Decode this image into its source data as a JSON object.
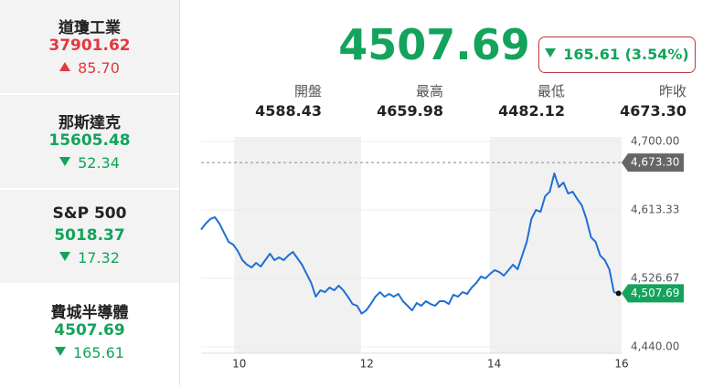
{
  "sidebar": {
    "selected": 3,
    "items": [
      {
        "name": "道瓊工業",
        "price": "37901.62",
        "change": "85.70",
        "direction": "up"
      },
      {
        "name": "那斯達克",
        "price": "15605.48",
        "change": "52.34",
        "direction": "down"
      },
      {
        "name": "S&P 500",
        "price": "5018.37",
        "change": "17.32",
        "direction": "down"
      },
      {
        "name": "費城半導體",
        "price": "4507.69",
        "change": "165.61",
        "direction": "down"
      }
    ]
  },
  "colors": {
    "up": "#e2393f",
    "down": "#13a35b"
  },
  "header": {
    "price": "4507.69",
    "change": "165.61 (3.54%)",
    "direction": "down",
    "stats": [
      {
        "label": "開盤",
        "value": "4588.43"
      },
      {
        "label": "最高",
        "value": "4659.98"
      },
      {
        "label": "最低",
        "value": "4482.12"
      },
      {
        "label": "昨收",
        "value": "4673.30"
      }
    ]
  },
  "chart_data": {
    "type": "line",
    "x": [
      9.4,
      9.472,
      9.544,
      9.616,
      9.688,
      9.76,
      9.832,
      9.904,
      9.976,
      10.048,
      10.12,
      10.192,
      10.264,
      10.336,
      10.408,
      10.48,
      10.552,
      10.624,
      10.696,
      10.768,
      10.84,
      10.912,
      10.984,
      11.056,
      11.128,
      11.2,
      11.272,
      11.344,
      11.416,
      11.488,
      11.56,
      11.632,
      11.704,
      11.776,
      11.848,
      11.92,
      11.992,
      12.064,
      12.136,
      12.208,
      12.28,
      12.352,
      12.424,
      12.496,
      12.568,
      12.64,
      12.712,
      12.784,
      12.856,
      12.928,
      13.0,
      13.072,
      13.144,
      13.216,
      13.288,
      13.36,
      13.432,
      13.504,
      13.576,
      13.648,
      13.72,
      13.792,
      13.864,
      13.936,
      14.008,
      14.08,
      14.152,
      14.224,
      14.296,
      14.368,
      14.44,
      14.512,
      14.584,
      14.656,
      14.728,
      14.8,
      14.872,
      14.944,
      15.016,
      15.088,
      15.16,
      15.232,
      15.304,
      15.376,
      15.448,
      15.52,
      15.592,
      15.664,
      15.736,
      15.808,
      15.88,
      15.952
    ],
    "series": [
      {
        "color": "#1e6fd6",
        "values": [
          4588.4,
          4596.0,
          4601.8,
          4604.1,
          4596.0,
          4584.4,
          4572.9,
          4569.4,
          4561.3,
          4549.8,
          4544.0,
          4540.5,
          4546.3,
          4541.7,
          4549.8,
          4557.9,
          4549.8,
          4553.2,
          4549.8,
          4555.6,
          4560.2,
          4552.1,
          4544.0,
          4532.4,
          4520.9,
          4503.5,
          4511.6,
          4509.3,
          4515.1,
          4511.6,
          4517.4,
          4511.6,
          4503.5,
          4494.3,
          4492.0,
          4482.1,
          4486.2,
          4494.3,
          4503.5,
          4509.3,
          4503.5,
          4507.0,
          4503.5,
          4507.0,
          4497.8,
          4492.0,
          4486.2,
          4495.5,
          4492.0,
          4497.8,
          4494.3,
          4492.0,
          4497.8,
          4497.8,
          4494.3,
          4505.9,
          4503.5,
          4509.3,
          4507.0,
          4515.1,
          4520.9,
          4529.0,
          4526.7,
          4532.4,
          4537.1,
          4534.7,
          4530.1,
          4537.1,
          4544.0,
          4538.2,
          4555.6,
          4572.9,
          4601.8,
          4613.3,
          4611.0,
          4630.7,
          4636.4,
          4659.6,
          4642.2,
          4648.0,
          4634.1,
          4636.4,
          4627.2,
          4619.1,
          4601.8,
          4578.7,
          4572.9,
          4555.6,
          4549.8,
          4538.2,
          4509.3,
          4507.69
        ]
      }
    ],
    "last_value_label": "4,507.69",
    "reference": {
      "value": 4673.3,
      "label": "4,673.30"
    },
    "bands": [
      [
        9.92,
        11.91
      ],
      [
        13.93,
        16.0
      ]
    ],
    "xlim": [
      9.4,
      16.0
    ],
    "xticks": [
      10,
      12,
      14,
      16
    ],
    "ylim": [
      4440,
      4700
    ],
    "yticks": [
      {
        "value": 4700,
        "label": "4,700.00"
      },
      {
        "value": 4613.33,
        "label": "4,613.33"
      },
      {
        "value": 4526.67,
        "label": "4,526.67"
      },
      {
        "value": 4440,
        "label": "4,440.00"
      }
    ],
    "grid": true
  }
}
